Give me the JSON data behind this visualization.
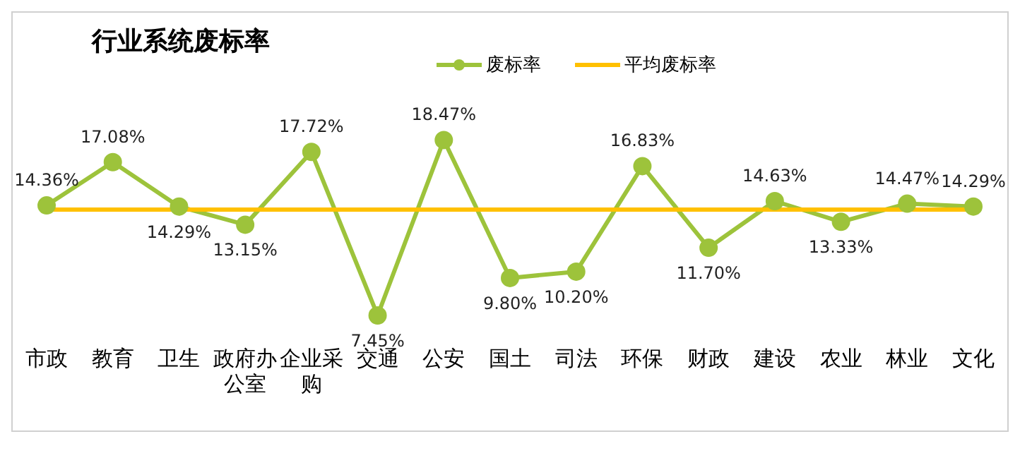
{
  "chart_data": {
    "type": "line",
    "title": "行业系统废标率",
    "categories": [
      "市政",
      "教育",
      "卫生",
      "政府办公室",
      "企业采购",
      "交通",
      "公安",
      "国土",
      "司法",
      "环保",
      "财政",
      "建设",
      "农业",
      "林业",
      "文化"
    ],
    "series": [
      {
        "name": "废标率",
        "color": "#9dc33b",
        "marker": "circle",
        "values": [
          14.36,
          17.08,
          14.29,
          13.15,
          17.72,
          7.45,
          18.47,
          9.8,
          10.2,
          16.83,
          11.7,
          14.63,
          13.33,
          14.47,
          14.29
        ],
        "value_labels": [
          "14.36%",
          "17.08%",
          "14.29%",
          "13.15%",
          "17.72%",
          "7.45%",
          "18.47%",
          "9.80%",
          "10.20%",
          "16.83%",
          "11.70%",
          "14.63%",
          "13.33%",
          "14.47%",
          "14.29%"
        ]
      },
      {
        "name": "平均废标率",
        "color": "#ffc000",
        "marker": "none",
        "values": [
          14.1,
          14.1,
          14.1,
          14.1,
          14.1,
          14.1,
          14.1,
          14.1,
          14.1,
          14.1,
          14.1,
          14.1,
          14.1,
          14.1,
          14.1
        ]
      }
    ],
    "grid": false,
    "legend": "top",
    "tick_labels": "x"
  }
}
